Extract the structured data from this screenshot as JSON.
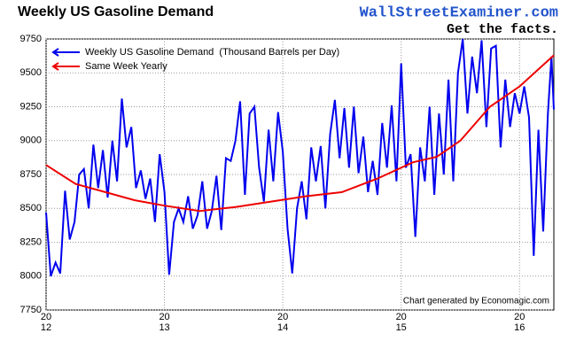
{
  "chart_data": {
    "type": "line",
    "title": "Weekly US Gasoline Demand",
    "site": "WallStreetExaminer.com",
    "tagline": "Get the facts.",
    "credit": "Chart generated by Economagic.com",
    "legend": "upper left",
    "grid": true,
    "xlim": [
      2012,
      2016.29
    ],
    "ylim": [
      7750,
      9750
    ],
    "xticks": [
      {
        "value": 2012,
        "label": "20\n12"
      },
      {
        "value": 2013,
        "label": "20\n13"
      },
      {
        "value": 2014,
        "label": "20\n14"
      },
      {
        "value": 2015,
        "label": "20\n15"
      },
      {
        "value": 2016,
        "label": "20\n16"
      }
    ],
    "yticks": [
      7750,
      8000,
      8250,
      8500,
      8750,
      9000,
      9250,
      9500,
      9750
    ],
    "series": [
      {
        "name": "Weekly US Gasoline Demand  (Thousand Barrels per Day)",
        "color": "#0000ee",
        "x": [
          2012.0,
          2012.04,
          2012.08,
          2012.12,
          2012.16,
          2012.2,
          2012.24,
          2012.28,
          2012.32,
          2012.36,
          2012.4,
          2012.44,
          2012.48,
          2012.52,
          2012.56,
          2012.6,
          2012.64,
          2012.68,
          2012.72,
          2012.76,
          2012.8,
          2012.84,
          2012.88,
          2012.92,
          2012.96,
          2013.0,
          2013.04,
          2013.08,
          2013.12,
          2013.16,
          2013.2,
          2013.24,
          2013.28,
          2013.32,
          2013.36,
          2013.4,
          2013.44,
          2013.48,
          2013.52,
          2013.56,
          2013.6,
          2013.64,
          2013.68,
          2013.72,
          2013.76,
          2013.8,
          2013.84,
          2013.88,
          2013.92,
          2013.96,
          2014.0,
          2014.04,
          2014.08,
          2014.12,
          2014.16,
          2014.2,
          2014.24,
          2014.28,
          2014.32,
          2014.36,
          2014.4,
          2014.44,
          2014.48,
          2014.52,
          2014.56,
          2014.6,
          2014.64,
          2014.68,
          2014.72,
          2014.76,
          2014.8,
          2014.84,
          2014.88,
          2014.92,
          2014.96,
          2015.0,
          2015.04,
          2015.08,
          2015.12,
          2015.16,
          2015.2,
          2015.24,
          2015.28,
          2015.32,
          2015.36,
          2015.4,
          2015.44,
          2015.48,
          2015.52,
          2015.56,
          2015.6,
          2015.64,
          2015.68,
          2015.72,
          2015.76,
          2015.8,
          2015.84,
          2015.88,
          2015.92,
          2015.96,
          2016.0,
          2016.04,
          2016.08,
          2016.12,
          2016.16,
          2016.2,
          2016.24,
          2016.27,
          2016.29
        ],
        "values": [
          8470,
          8000,
          8100,
          8020,
          8630,
          8270,
          8400,
          8750,
          8790,
          8500,
          8970,
          8650,
          8930,
          8580,
          9000,
          8700,
          9310,
          8950,
          9100,
          8650,
          8780,
          8570,
          8720,
          8400,
          8900,
          8620,
          8010,
          8400,
          8500,
          8400,
          8590,
          8350,
          8450,
          8700,
          8350,
          8480,
          8740,
          8340,
          8870,
          8850,
          9000,
          9290,
          8600,
          9200,
          9250,
          8800,
          8550,
          9080,
          8700,
          9210,
          8920,
          8350,
          8020,
          8500,
          8700,
          8420,
          8950,
          8700,
          8960,
          8500,
          9050,
          9300,
          8870,
          9240,
          8800,
          9250,
          8760,
          9030,
          8620,
          8850,
          8600,
          9130,
          8800,
          9260,
          8700,
          9570,
          8800,
          8900,
          8290,
          8950,
          8700,
          9250,
          8600,
          9200,
          8750,
          9450,
          8700,
          9500,
          9750,
          9200,
          9620,
          9350,
          9740,
          9100,
          9680,
          9700,
          8950,
          9450,
          9100,
          9350,
          9200,
          9400,
          9170,
          8150,
          9080,
          8330,
          9200,
          9620,
          9230
        ]
      },
      {
        "name": "Same Week Yearly",
        "color": "#ee0000",
        "x": [
          2012.0,
          2012.25,
          2012.5,
          2012.75,
          2013.0,
          2013.3,
          2013.6,
          2013.9,
          2014.2,
          2014.5,
          2014.8,
          2015.1,
          2015.3,
          2015.5,
          2015.75,
          2016.0,
          2016.29
        ],
        "values": [
          8820,
          8680,
          8620,
          8560,
          8520,
          8480,
          8510,
          8550,
          8590,
          8620,
          8720,
          8840,
          8880,
          9000,
          9250,
          9400,
          9630
        ]
      }
    ]
  }
}
